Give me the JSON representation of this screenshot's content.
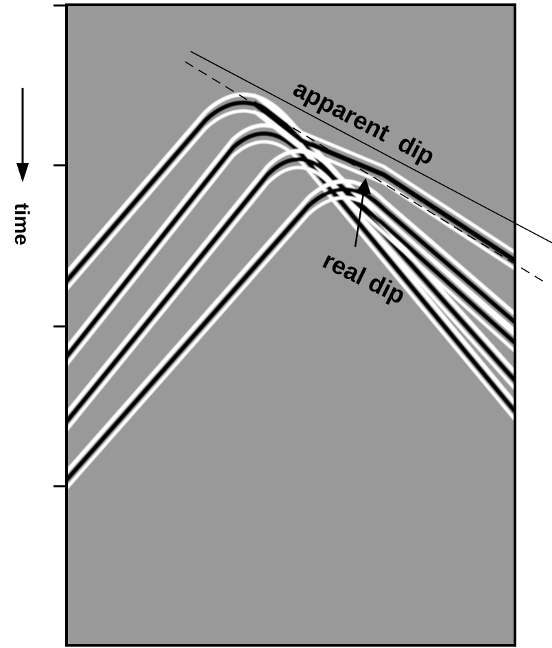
{
  "labels": {
    "time": "time",
    "apparent_dip": "apparent  dip",
    "real_dip": "real dip"
  },
  "colors": {
    "background": "#999999",
    "frame": "#000000",
    "wavelet_peak": "#000000",
    "wavelet_trough": "#ffffff"
  },
  "icons": {
    "time_arrow": "arrow-down-icon"
  }
}
